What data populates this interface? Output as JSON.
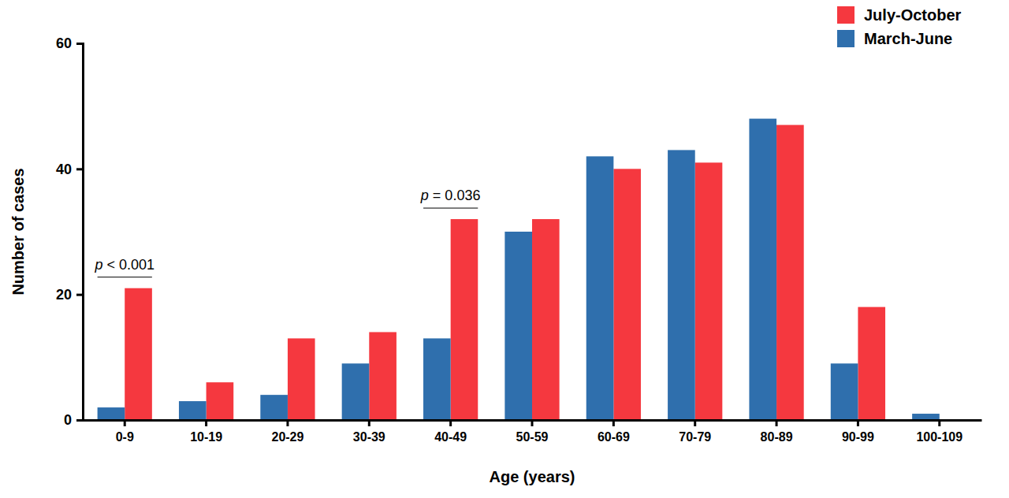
{
  "chart_data": {
    "type": "bar",
    "x_label": "Age (years)",
    "y_label": "Number of cases",
    "categories": [
      "0-9",
      "10-19",
      "20-29",
      "30-39",
      "40-49",
      "50-59",
      "60-69",
      "70-79",
      "80-89",
      "90-99",
      "100-109"
    ],
    "series": [
      {
        "name": "July-October",
        "color": "#f5383f",
        "values": [
          21,
          6,
          13,
          14,
          32,
          32,
          40,
          41,
          47,
          18,
          0
        ]
      },
      {
        "name": "March-June",
        "color": "#2f6fad",
        "values": [
          2,
          3,
          4,
          9,
          13,
          30,
          42,
          43,
          48,
          9,
          1
        ]
      }
    ],
    "annotations": [
      {
        "text": "p < 0.001",
        "category": "0-9"
      },
      {
        "text": "p = 0.036",
        "category": "40-49"
      }
    ],
    "ylim": [
      0,
      60
    ],
    "yticks": [
      0,
      20,
      40,
      60
    ],
    "legend": "upper right",
    "grid": false
  }
}
